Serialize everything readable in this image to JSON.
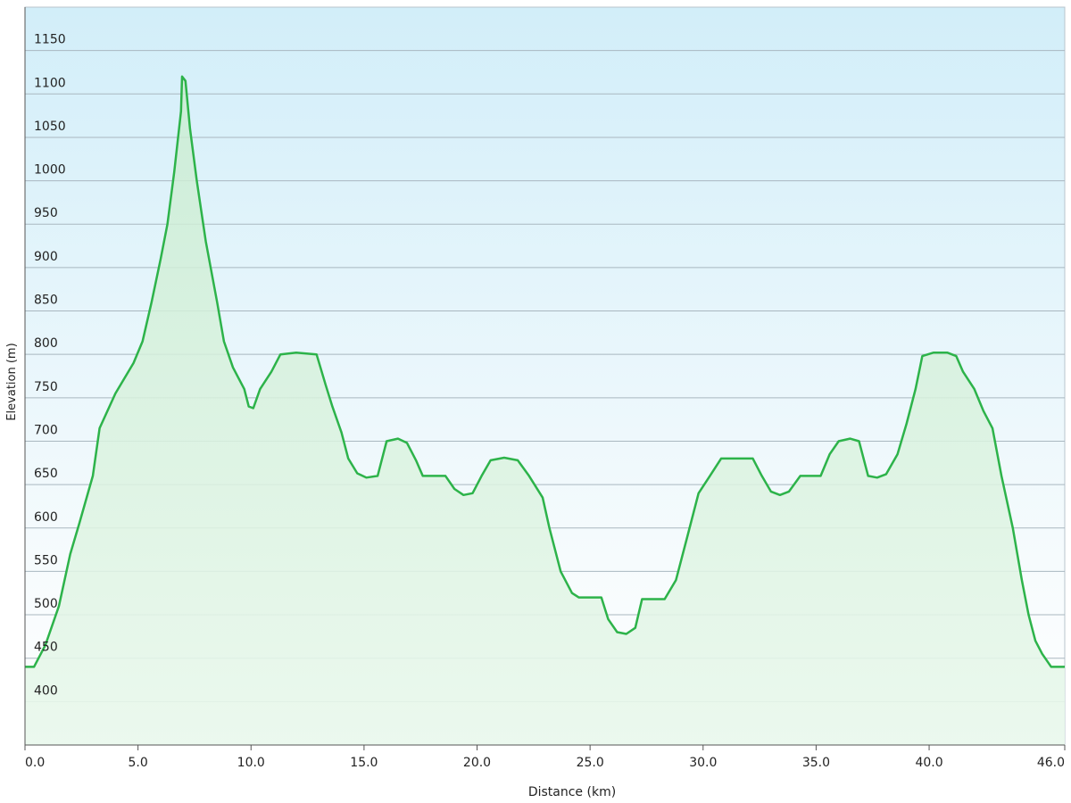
{
  "chart_data": {
    "type": "area",
    "xlabel": "Distance  (km)",
    "ylabel": "Elevation (m)",
    "color": "#2db34a",
    "xlim": [
      0,
      46
    ],
    "ylim": [
      350,
      1200
    ],
    "xticks": [
      {
        "value": 0,
        "label": "0.0"
      },
      {
        "value": 5,
        "label": "5.0"
      },
      {
        "value": 10,
        "label": "10.0"
      },
      {
        "value": 15,
        "label": "15.0"
      },
      {
        "value": 20,
        "label": "20.0"
      },
      {
        "value": 25,
        "label": "25.0"
      },
      {
        "value": 30,
        "label": "30.0"
      },
      {
        "value": 35,
        "label": "35.0"
      },
      {
        "value": 40,
        "label": "40.0"
      },
      {
        "value": 46,
        "label": "46.0"
      }
    ],
    "yticks": [
      400,
      450,
      500,
      550,
      600,
      650,
      700,
      750,
      800,
      850,
      900,
      950,
      1000,
      1050,
      1100,
      1150
    ],
    "grid": true,
    "x": [
      0,
      0.4,
      0.9,
      1.5,
      2.0,
      2.4,
      3.0,
      3.3,
      4.0,
      4.8,
      5.2,
      5.6,
      6.0,
      6.3,
      6.6,
      6.9,
      6.95,
      7.1,
      7.3,
      7.6,
      8.0,
      8.5,
      8.8,
      9.2,
      9.7,
      9.9,
      10.1,
      10.4,
      10.9,
      11.3,
      12.0,
      12.9,
      13.3,
      13.6,
      14.0,
      14.3,
      14.7,
      15.1,
      15.6,
      16.0,
      16.5,
      16.9,
      17.3,
      17.6,
      18.6,
      19.0,
      19.4,
      19.8,
      20.2,
      20.6,
      21.2,
      21.8,
      22.3,
      22.9,
      23.2,
      23.7,
      24.2,
      24.5,
      25.5,
      25.8,
      26.2,
      26.6,
      27.0,
      27.3,
      28.3,
      28.8,
      29.3,
      29.8,
      30.3,
      30.8,
      32.2,
      32.6,
      33.0,
      33.4,
      33.8,
      34.3,
      35.2,
      35.6,
      36.0,
      36.5,
      36.9,
      37.3,
      37.7,
      38.1,
      38.6,
      39.0,
      39.4,
      39.7,
      40.2,
      40.8,
      41.2,
      41.5,
      42.0,
      42.4,
      42.8,
      43.2,
      43.7,
      44.1,
      44.4,
      44.7,
      45.0,
      45.4,
      46
    ],
    "values": [
      440,
      440,
      465,
      510,
      570,
      605,
      660,
      715,
      755,
      790,
      815,
      860,
      910,
      950,
      1010,
      1080,
      1120,
      1115,
      1060,
      1000,
      930,
      860,
      815,
      785,
      760,
      740,
      738,
      760,
      780,
      800,
      802,
      800,
      765,
      740,
      710,
      680,
      663,
      658,
      660,
      700,
      703,
      698,
      678,
      660,
      660,
      645,
      638,
      640,
      660,
      678,
      681,
      678,
      660,
      635,
      600,
      550,
      525,
      520,
      520,
      495,
      480,
      478,
      485,
      518,
      518,
      540,
      590,
      640,
      660,
      680,
      680,
      660,
      642,
      638,
      642,
      660,
      660,
      685,
      700,
      703,
      700,
      660,
      658,
      662,
      685,
      720,
      760,
      798,
      802,
      802,
      798,
      780,
      760,
      735,
      715,
      660,
      600,
      540,
      500,
      470,
      455,
      440,
      440
    ]
  }
}
